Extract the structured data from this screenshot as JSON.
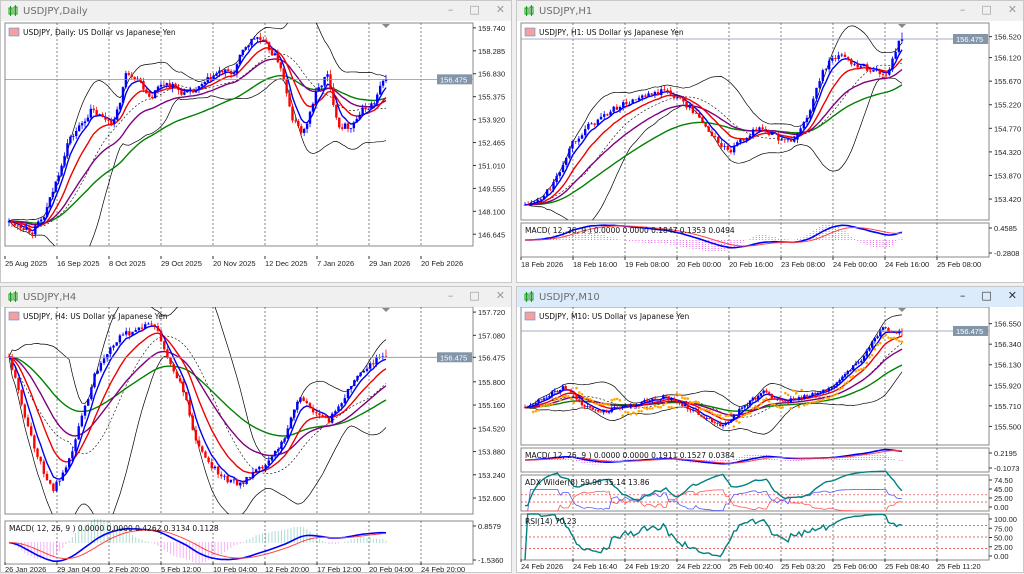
{
  "colors": {
    "bull": "#0000ff",
    "bear": "#ff0000",
    "ma_fast": "#0000ee",
    "ma_mid": "#ee0000",
    "ma_slow": "#800080",
    "ma_long": "#008000",
    "bands": "#000000",
    "price_tag": "#8395a8",
    "active_titlebar": "#dcebfb",
    "parabolic_sar": "#ffa500",
    "adx": "#008080",
    "rsi": "#008080"
  },
  "windows": [
    {
      "title": "USDJPY,Daily",
      "active": false,
      "icons": [
        "candlestick-icon",
        "minimize-icon",
        "maximize-icon",
        "close-icon"
      ],
      "legend": "USDJPY, Daily:  US Dollar vs Japanese Yen",
      "current_price": "156.475",
      "chart_data": {
        "type": "candlestick",
        "ylim": [
          145.9,
          160.05
        ],
        "y_ticks": [
          "159.740",
          "158.285",
          "156.830",
          "155.375",
          "153.920",
          "152.465",
          "151.010",
          "149.555",
          "148.100",
          "146.645"
        ],
        "x_labels": [
          "25 Aug 2025",
          "16 Sep 2025",
          "8 Oct 2025",
          "29 Oct 2025",
          "20 Nov 2025",
          "12 Dec 2025",
          "7 Jan 2026",
          "29 Jan 2026",
          "20 Feb 2026"
        ],
        "price_path": [
          147.4,
          147.2,
          146.8,
          147.8,
          150,
          152.5,
          153.5,
          154.5,
          154,
          153.8,
          157,
          156.5,
          155.3,
          156.3,
          156,
          155.5,
          155.8,
          156.5,
          157,
          156.8,
          158.5,
          159.2,
          158.5,
          157.5,
          154,
          153,
          155.5,
          156.8,
          153.5,
          153.5,
          154.5,
          155,
          156.8
        ],
        "bars": 130,
        "sub_panels": []
      }
    },
    {
      "title": "USDJPY,H1",
      "active": false,
      "icons": [
        "candlestick-icon",
        "minimize-icon",
        "maximize-icon",
        "close-icon"
      ],
      "legend": "USDJPY, H1:  US Dollar vs Japanese Yen",
      "current_price": "156.475",
      "chart_data": {
        "type": "candlestick",
        "ylim": [
          153.02,
          156.78
        ],
        "y_ticks": [
          "156.520",
          "156.120",
          "155.670",
          "155.220",
          "154.770",
          "154.320",
          "153.870",
          "153.420"
        ],
        "x_labels": [
          "18 Feb 2026",
          "18 Feb 16:00",
          "19 Feb 08:00",
          "20 Feb 00:00",
          "20 Feb 16:00",
          "23 Feb 08:00",
          "24 Feb 00:00",
          "24 Feb 16:00",
          "25 Feb 08:00"
        ],
        "price_path": [
          153.3,
          153.4,
          153.8,
          154.5,
          154.8,
          155,
          155.2,
          155.3,
          155.4,
          155.5,
          155.3,
          155,
          154.6,
          154.3,
          154.6,
          154.8,
          154.6,
          154.5,
          155,
          155.9,
          156.2,
          156,
          155.9,
          155.8,
          156.55
        ],
        "bars": 120,
        "sub_panels": [
          {
            "kind": "macd",
            "legend": "MACD( 12, 26, 9 ) 0.0000 0.0000 0.1847 0.1353 0.0494",
            "y_ticks": [
              "0.4585",
              "-0.2808"
            ]
          }
        ]
      }
    },
    {
      "title": "USDJPY,H4",
      "active": false,
      "icons": [
        "candlestick-icon",
        "minimize-icon",
        "maximize-icon",
        "close-icon"
      ],
      "legend": "USDJPY, H4:  US Dollar vs Japanese Yen",
      "current_price": "156.475",
      "chart_data": {
        "type": "candlestick",
        "ylim": [
          152.16,
          157.86
        ],
        "y_ticks": [
          "157.720",
          "157.080",
          "156.475",
          "155.800",
          "155.160",
          "154.520",
          "153.880",
          "153.240",
          "152.600"
        ],
        "x_labels": [
          "26 Jan 2026",
          "29 Jan 04:00",
          "2 Feb 20:00",
          "5 Feb 12:00",
          "10 Feb 04:00",
          "12 Feb 20:00",
          "17 Feb 12:00",
          "20 Feb 04:00",
          "24 Feb 20:00"
        ],
        "price_path": [
          156.5,
          155,
          153.7,
          152.8,
          153.4,
          154.8,
          156.1,
          156.8,
          157.1,
          157.3,
          157.4,
          156.4,
          155.6,
          154,
          153.5,
          153.1,
          153,
          153.3,
          153.6,
          154.3,
          155.4,
          155,
          154.7,
          155.3,
          156,
          156.3,
          156.6
        ],
        "bars": 120,
        "sub_panels": [
          {
            "kind": "macd",
            "legend": "MACD( 12, 26, 9 ) 0.0000 0.0000 0.4262 0.3134 0.1128",
            "y_ticks": [
              "0.8579",
              "-1.5360"
            ]
          }
        ]
      }
    },
    {
      "title": "USDJPY,M10",
      "active": true,
      "icons": [
        "candlestick-icon",
        "minimize-icon",
        "maximize-icon",
        "close-icon"
      ],
      "legend": "USDJPY, M10:  US Dollar vs Japanese Yen",
      "current_price": "156.475",
      "chart_data": {
        "type": "candlestick",
        "ylim": [
          155.31,
          156.72
        ],
        "y_ticks": [
          "156.550",
          "156.340",
          "156.130",
          "155.920",
          "155.710",
          "155.500"
        ],
        "x_labels": [
          "24 Feb 2026",
          "24 Feb 16:40",
          "24 Feb 19:20",
          "24 Feb 22:00",
          "25 Feb 00:40",
          "25 Feb 03:20",
          "25 Feb 06:00",
          "25 Feb 08:40",
          "25 Feb 11:20"
        ],
        "price_path": [
          155.7,
          155.8,
          155.9,
          155.7,
          155.65,
          155.7,
          155.75,
          155.8,
          155.72,
          155.6,
          155.5,
          155.7,
          155.85,
          155.75,
          155.8,
          155.85,
          156.0,
          156.2,
          156.5,
          156.45
        ],
        "bars": 140,
        "parabolic_sar": true,
        "sub_panels": [
          {
            "kind": "macd",
            "legend": "MACD( 12, 26, 9 ) 0.0000 0.0000 0.1911 0.1527 0.0384",
            "y_ticks": [
              "0.2195",
              "-0.1073"
            ]
          },
          {
            "kind": "adx",
            "legend": "ADX Wilder(8) 59.96 35.14 13.86",
            "y_ticks": [
              "74.50",
              "45.00",
              "25.00",
              "0.00"
            ],
            "levels": [
              45,
              25
            ]
          },
          {
            "kind": "rsi",
            "legend": "RSI(14) 70.23",
            "y_ticks": [
              "100.00",
              "75.00",
              "50.00",
              "25.00",
              "0.00"
            ],
            "levels": [
              75,
              50,
              25
            ]
          }
        ]
      }
    }
  ]
}
